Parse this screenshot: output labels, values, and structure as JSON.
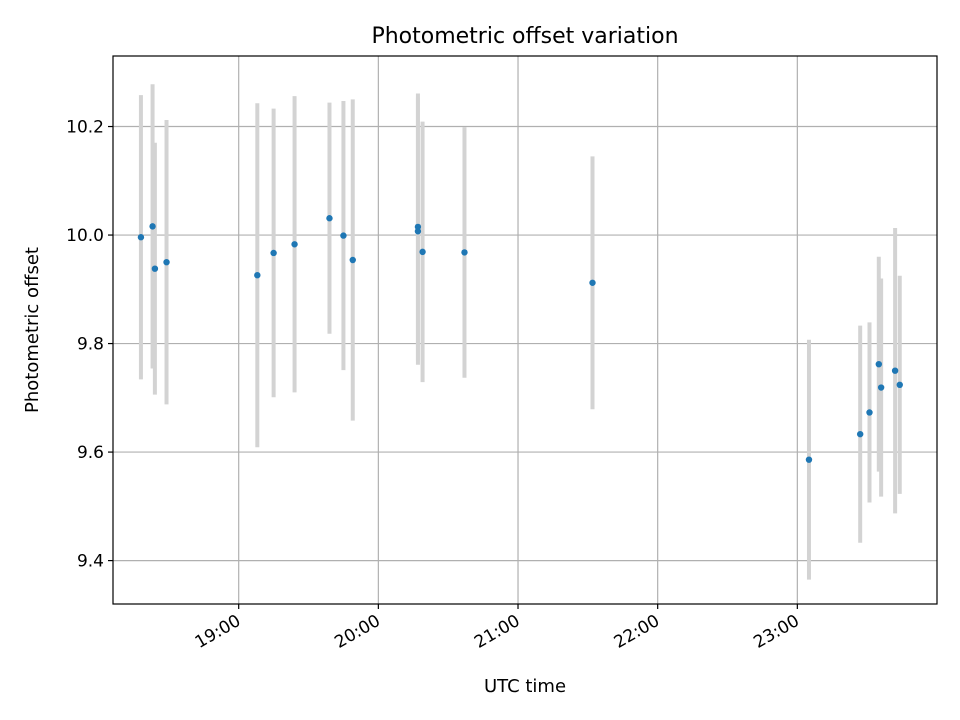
{
  "chart_data": {
    "type": "scatter",
    "title": "Photometric offset variation",
    "xlabel": "UTC time",
    "ylabel": "Photometric offset",
    "xlim": [
      "18:06",
      "24:00"
    ],
    "ylim": [
      9.32,
      10.33
    ],
    "x_ticks": [
      "19:00",
      "20:00",
      "21:00",
      "22:00",
      "23:00"
    ],
    "y_ticks": [
      9.4,
      9.6,
      9.8,
      10.0,
      10.2
    ],
    "y_tick_labels": [
      "9.4",
      "9.6",
      "9.8",
      "10.0",
      "10.2"
    ],
    "grid": true,
    "marker_color": "#1f77b4",
    "errorbar_color": "#d3d3d3",
    "points": [
      {
        "t": "18:18",
        "y": 9.996,
        "err": 0.262
      },
      {
        "t": "18:23",
        "y": 10.016,
        "err": 0.262
      },
      {
        "t": "18:24",
        "y": 9.938,
        "err": 0.232
      },
      {
        "t": "18:29",
        "y": 9.95,
        "err": 0.262
      },
      {
        "t": "19:08",
        "y": 9.926,
        "err": 0.317
      },
      {
        "t": "19:15",
        "y": 9.967,
        "err": 0.266
      },
      {
        "t": "19:24",
        "y": 9.983,
        "err": 0.273
      },
      {
        "t": "19:39",
        "y": 10.031,
        "err": 0.213
      },
      {
        "t": "19:45",
        "y": 9.999,
        "err": 0.248
      },
      {
        "t": "19:49",
        "y": 9.954,
        "err": 0.296
      },
      {
        "t": "20:17",
        "y": 10.015,
        "err": 0.246
      },
      {
        "t": "20:17",
        "y": 10.007,
        "err": 0.246
      },
      {
        "t": "20:19",
        "y": 9.969,
        "err": 0.24
      },
      {
        "t": "20:37",
        "y": 9.968,
        "err": 0.231
      },
      {
        "t": "21:32",
        "y": 9.912,
        "err": 0.233
      },
      {
        "t": "23:05",
        "y": 9.586,
        "err": 0.221
      },
      {
        "t": "23:27",
        "y": 9.633,
        "err": 0.2
      },
      {
        "t": "23:31",
        "y": 9.673,
        "err": 0.166
      },
      {
        "t": "23:35",
        "y": 9.762,
        "err": 0.198
      },
      {
        "t": "23:36",
        "y": 9.719,
        "err": 0.201
      },
      {
        "t": "23:42",
        "y": 9.75,
        "err": 0.263
      },
      {
        "t": "23:44",
        "y": 9.724,
        "err": 0.201
      }
    ]
  }
}
